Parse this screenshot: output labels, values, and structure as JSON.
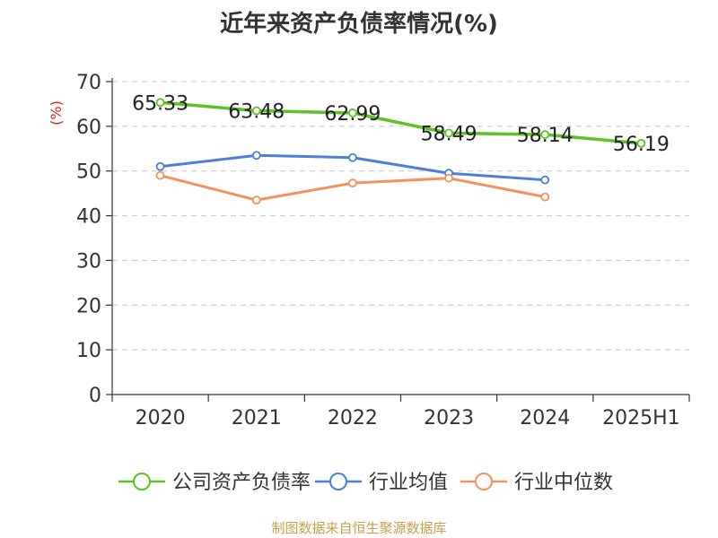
{
  "chart_data": {
    "type": "line",
    "title": "近年来资产负债率情况(%)",
    "ylabel": "(%)",
    "xlabel": "",
    "categories": [
      "2020",
      "2021",
      "2022",
      "2023",
      "2024",
      "2025H1"
    ],
    "ylim": [
      0,
      70
    ],
    "yticks": [
      0,
      10,
      20,
      30,
      40,
      50,
      60,
      70
    ],
    "grid": true,
    "legend_position": "bottom",
    "series": [
      {
        "name": "公司资产负债率",
        "color": "#5cc323",
        "values": [
          65.33,
          63.48,
          62.99,
          58.49,
          58.14,
          56.19
        ],
        "labels": [
          "65.33",
          "63.48",
          "62.99",
          "58.49",
          "58.14",
          "56.19"
        ]
      },
      {
        "name": "行业均值",
        "color": "#4a7fdb",
        "values": [
          51.0,
          53.5,
          53.0,
          49.5,
          48.0,
          null
        ]
      },
      {
        "name": "行业中位数",
        "color": "#f5915a",
        "values": [
          49.0,
          43.5,
          47.3,
          48.4,
          44.2,
          null
        ]
      }
    ]
  },
  "source": "制图数据来自恒生聚源数据库"
}
